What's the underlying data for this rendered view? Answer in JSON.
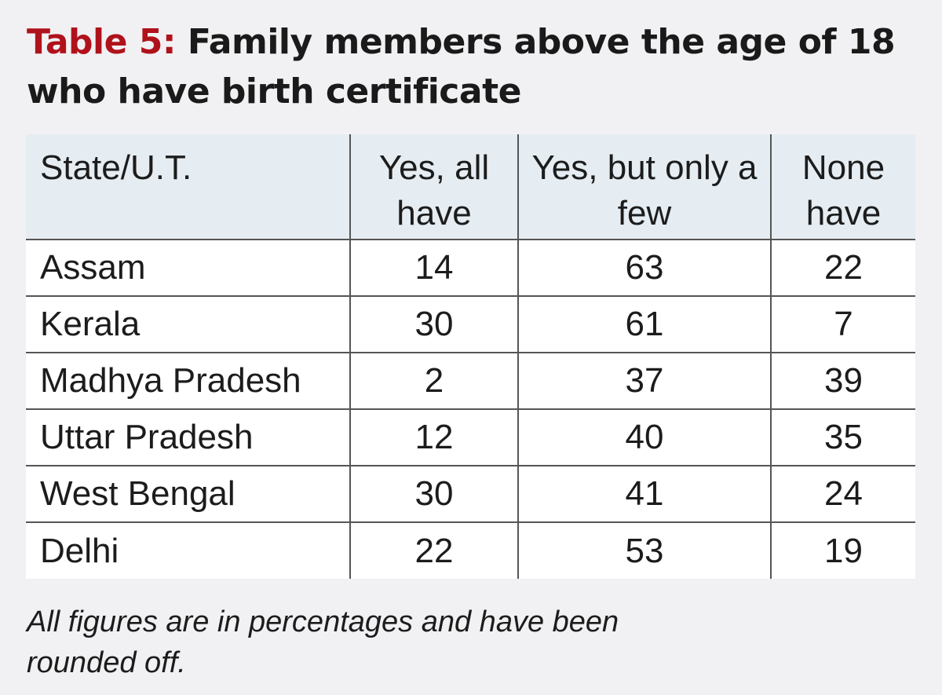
{
  "title": {
    "label": "Table 5:",
    "text": "Family members above the age of 18 who have birth certificate"
  },
  "colors": {
    "label": "#b0121b",
    "header_bg": "#e5edf2",
    "page_bg": "#f1f1f3",
    "row_bg": "#ffffff"
  },
  "table": {
    "headers": [
      "State/U.T.",
      "Yes, all have",
      "Yes, but only a few",
      "None have"
    ],
    "rows": [
      {
        "state": "Assam",
        "all": "14",
        "few": "63",
        "none": "22"
      },
      {
        "state": "Kerala",
        "all": "30",
        "few": "61",
        "none": "7"
      },
      {
        "state": "Madhya Pradesh",
        "all": "2",
        "few": "37",
        "none": "39"
      },
      {
        "state": "Uttar Pradesh",
        "all": "12",
        "few": "40",
        "none": "35"
      },
      {
        "state": "West Bengal",
        "all": "30",
        "few": "41",
        "none": "24"
      },
      {
        "state": "Delhi",
        "all": "22",
        "few": "53",
        "none": "19"
      }
    ]
  },
  "note": "All figures are in percentages and have been rounded off.",
  "chart_data": {
    "type": "table",
    "title": "Table 5: Family members above the age of 18 who have birth certificate",
    "columns": [
      "State/U.T.",
      "Yes, all have",
      "Yes, but only a few",
      "None have"
    ],
    "categories": [
      "Assam",
      "Kerala",
      "Madhya Pradesh",
      "Uttar Pradesh",
      "West Bengal",
      "Delhi"
    ],
    "series": [
      {
        "name": "Yes, all have",
        "values": [
          14,
          30,
          2,
          12,
          30,
          22
        ]
      },
      {
        "name": "Yes, but only a few",
        "values": [
          63,
          61,
          37,
          40,
          41,
          53
        ]
      },
      {
        "name": "None have",
        "values": [
          22,
          7,
          39,
          35,
          24,
          19
        ]
      }
    ]
  }
}
